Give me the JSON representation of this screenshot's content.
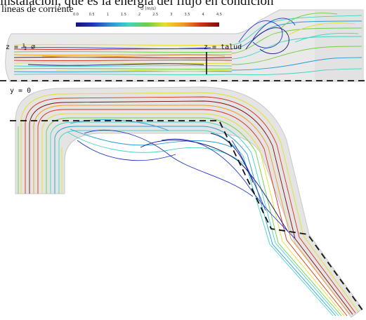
{
  "header_text": "instalación, que es la energía del flujo en condición",
  "title": "líneas de corriente",
  "colorbar": {
    "title": "U (m/s)",
    "ticks": [
      "0.0",
      "0.5",
      "1",
      "1.5",
      "2",
      "2.5",
      "3",
      "3.5",
      "4",
      "4.5"
    ],
    "colors": [
      "#14127a",
      "#2233c8",
      "#2a9ad6",
      "#3fd6c2",
      "#6fd040",
      "#e6df2a",
      "#f29a1e",
      "#d8321a",
      "#7a0d0d"
    ]
  },
  "labels": {
    "z_half": "z = ½ ⌀",
    "z_talud": "z = talud",
    "y_zero": "y = 0"
  }
}
